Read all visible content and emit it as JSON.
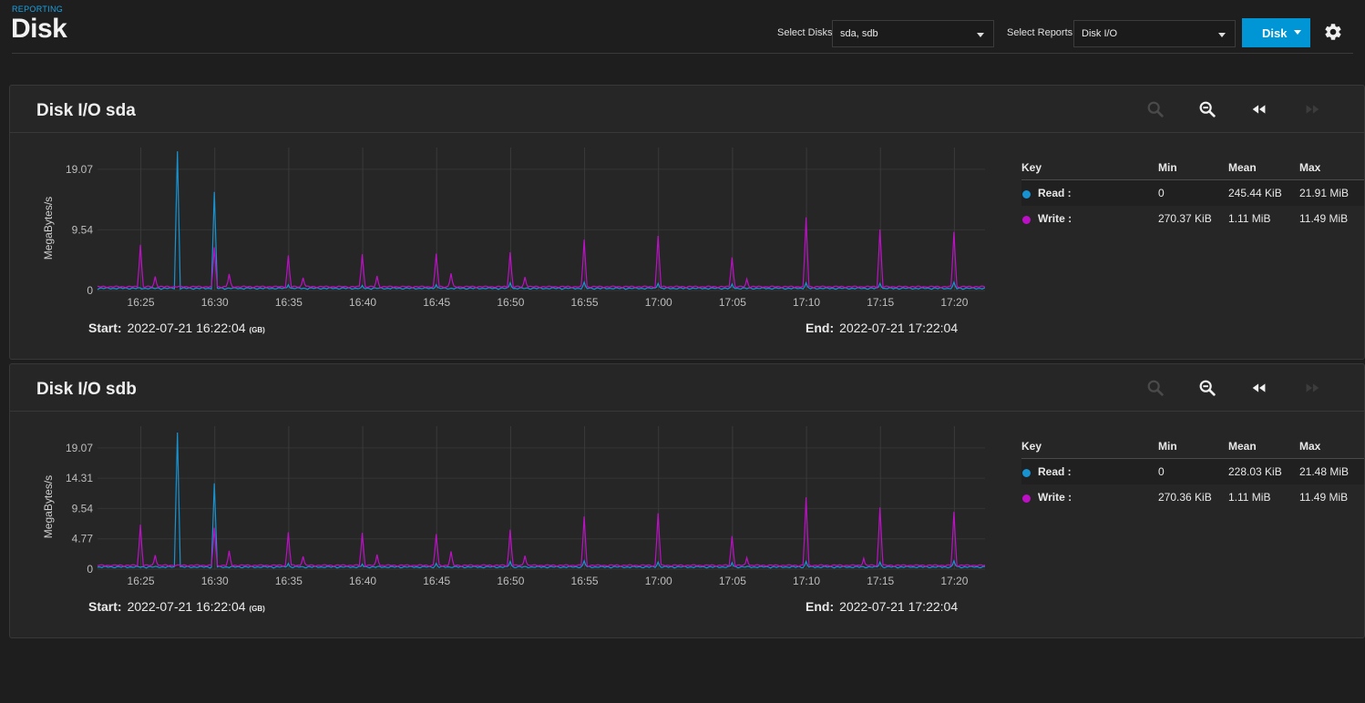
{
  "header": {
    "breadcrumb": "REPORTING",
    "title": "Disk",
    "select_disks_label": "Select Disks",
    "select_disks_value": "sda, sdb",
    "select_reports_label": "Select Reports",
    "select_reports_value": "Disk I/O",
    "disk_button": "Disk"
  },
  "colors": {
    "accent": "#0095d5",
    "read": "#1793d1",
    "write": "#bd10c6"
  },
  "cards": [
    {
      "title": "Disk I/O sda",
      "start_label": "Start:",
      "start_value": "2022-07-21 16:22:04",
      "start_tz": "(GB)",
      "end_label": "End:",
      "end_value": "2022-07-21 17:22:04",
      "legend": {
        "headers": [
          "Key",
          "Min",
          "Mean",
          "Max"
        ],
        "rows": [
          {
            "key": "Read :",
            "min": "0",
            "mean": "245.44 KiB",
            "max": "21.91 MiB"
          },
          {
            "key": "Write :",
            "min": "270.37 KiB",
            "mean": "1.11 MiB",
            "max": "11.49 MiB"
          }
        ]
      }
    },
    {
      "title": "Disk I/O sdb",
      "start_label": "Start:",
      "start_value": "2022-07-21 16:22:04",
      "start_tz": "(GB)",
      "end_label": "End:",
      "end_value": "2022-07-21 17:22:04",
      "legend": {
        "headers": [
          "Key",
          "Min",
          "Mean",
          "Max"
        ],
        "rows": [
          {
            "key": "Read :",
            "min": "0",
            "mean": "228.03 KiB",
            "max": "21.48 MiB"
          },
          {
            "key": "Write :",
            "min": "270.36 KiB",
            "mean": "1.11 MiB",
            "max": "11.49 MiB"
          }
        ]
      }
    }
  ],
  "chart_data": [
    {
      "type": "line",
      "ylabel": "MegaBytes/s",
      "y_ticks": [
        "0",
        "9.54",
        "19.07"
      ],
      "y_tick_values": [
        0,
        9.54,
        19.07
      ],
      "ylim": [
        0,
        22.5
      ],
      "x_ticks": [
        "16:25",
        "16:30",
        "16:35",
        "16:40",
        "16:45",
        "16:50",
        "16:55",
        "17:00",
        "17:05",
        "17:10",
        "17:15",
        "17:20"
      ],
      "x_tick_minutes": [
        2.93,
        7.93,
        12.93,
        17.93,
        22.93,
        27.93,
        32.93,
        37.93,
        42.93,
        47.93,
        52.93,
        57.93
      ],
      "xlim_minutes": [
        0,
        60
      ],
      "grid": true,
      "series": [
        {
          "name": "Read",
          "color": "#1793d1",
          "baseline": 0.15,
          "spikes": [
            [
              5.4,
              21.9
            ],
            [
              7.9,
              15.5
            ],
            [
              12.9,
              0.9
            ],
            [
              17.9,
              0.8
            ],
            [
              22.9,
              0.9
            ],
            [
              27.9,
              1.2
            ],
            [
              32.9,
              1.3
            ],
            [
              37.9,
              1.1
            ],
            [
              42.9,
              1.0
            ],
            [
              47.9,
              1.2
            ],
            [
              52.9,
              1.1
            ],
            [
              57.9,
              1.3
            ]
          ]
        },
        {
          "name": "Write",
          "color": "#bd10c6",
          "baseline": 0.4,
          "spikes": [
            [
              2.9,
              7.2
            ],
            [
              3.9,
              2.2
            ],
            [
              7.9,
              6.8
            ],
            [
              8.9,
              2.6
            ],
            [
              12.9,
              5.5
            ],
            [
              13.9,
              2.0
            ],
            [
              17.9,
              5.7
            ],
            [
              18.9,
              2.3
            ],
            [
              22.9,
              5.8
            ],
            [
              23.9,
              2.7
            ],
            [
              27.9,
              6.0
            ],
            [
              28.9,
              2.1
            ],
            [
              32.9,
              8.0
            ],
            [
              37.9,
              8.6
            ],
            [
              42.9,
              5.2
            ],
            [
              43.9,
              1.8
            ],
            [
              47.9,
              11.5
            ],
            [
              52.9,
              9.6
            ],
            [
              57.9,
              9.2
            ]
          ]
        }
      ]
    },
    {
      "type": "line",
      "ylabel": "MegaBytes/s",
      "y_ticks": [
        "0",
        "4.77",
        "9.54",
        "14.31",
        "19.07"
      ],
      "y_tick_values": [
        0,
        4.77,
        9.54,
        14.31,
        19.07
      ],
      "ylim": [
        0,
        22.5
      ],
      "x_ticks": [
        "16:25",
        "16:30",
        "16:35",
        "16:40",
        "16:45",
        "16:50",
        "16:55",
        "17:00",
        "17:05",
        "17:10",
        "17:15",
        "17:20"
      ],
      "x_tick_minutes": [
        2.93,
        7.93,
        12.93,
        17.93,
        22.93,
        27.93,
        32.93,
        37.93,
        42.93,
        47.93,
        52.93,
        57.93
      ],
      "xlim_minutes": [
        0,
        60
      ],
      "grid": true,
      "series": [
        {
          "name": "Read",
          "color": "#1793d1",
          "baseline": 0.15,
          "spikes": [
            [
              5.4,
              21.5
            ],
            [
              7.9,
              13.5
            ],
            [
              12.9,
              0.9
            ],
            [
              17.9,
              0.8
            ],
            [
              22.9,
              0.9
            ],
            [
              27.9,
              1.2
            ],
            [
              32.9,
              1.3
            ],
            [
              37.9,
              1.1
            ],
            [
              42.9,
              1.0
            ],
            [
              47.9,
              1.2
            ],
            [
              52.9,
              1.1
            ],
            [
              57.9,
              1.3
            ]
          ]
        },
        {
          "name": "Write",
          "color": "#bd10c6",
          "baseline": 0.4,
          "spikes": [
            [
              2.9,
              7.0
            ],
            [
              3.9,
              2.2
            ],
            [
              7.9,
              6.5
            ],
            [
              8.9,
              2.9
            ],
            [
              12.9,
              5.8
            ],
            [
              13.9,
              2.0
            ],
            [
              17.9,
              5.7
            ],
            [
              18.9,
              2.3
            ],
            [
              22.9,
              5.5
            ],
            [
              23.9,
              2.8
            ],
            [
              27.9,
              6.2
            ],
            [
              28.9,
              2.1
            ],
            [
              32.9,
              8.3
            ],
            [
              37.9,
              8.8
            ],
            [
              42.9,
              5.2
            ],
            [
              43.9,
              1.8
            ],
            [
              47.9,
              11.3
            ],
            [
              51.8,
              1.7
            ],
            [
              52.9,
              9.7
            ],
            [
              57.9,
              9.0
            ]
          ]
        }
      ]
    }
  ]
}
